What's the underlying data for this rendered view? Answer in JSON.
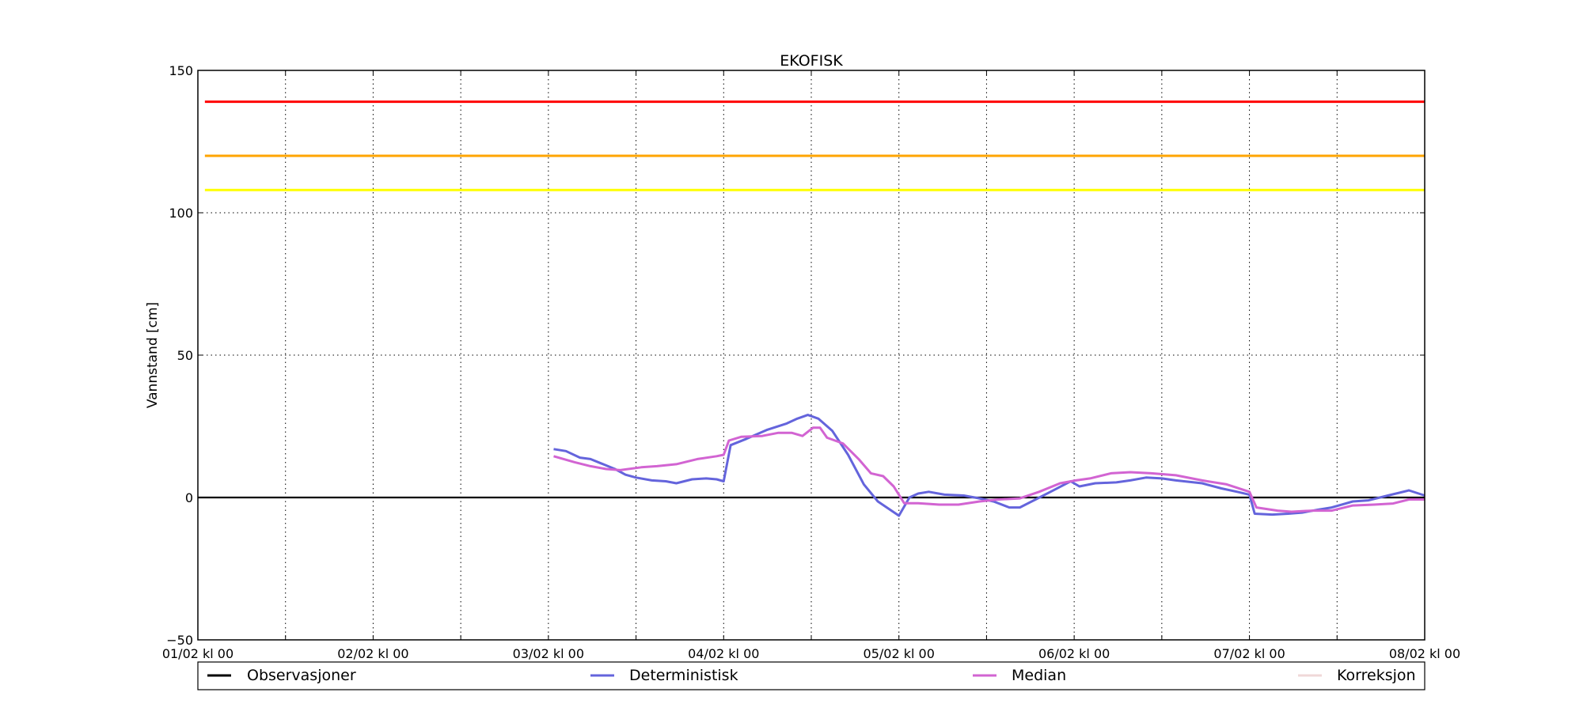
{
  "chart_data": {
    "type": "line",
    "title": "EKOFISK",
    "xlabel": "",
    "ylabel": "Vannstand [cm]",
    "xlim": [
      0,
      7
    ],
    "ylim": [
      -50,
      150
    ],
    "x_unit": "days since 01/02 kl 00",
    "grid": true,
    "xticks": [
      {
        "value": 0,
        "label": "01/02 kl 00"
      },
      {
        "value": 1,
        "label": "02/02 kl 00"
      },
      {
        "value": 2,
        "label": "03/02 kl 00"
      },
      {
        "value": 3,
        "label": "04/02 kl 00"
      },
      {
        "value": 4,
        "label": "05/02 kl 00"
      },
      {
        "value": 5,
        "label": "06/02 kl 00"
      },
      {
        "value": 6,
        "label": "07/02 kl 00"
      },
      {
        "value": 7,
        "label": "08/02 kl 00"
      }
    ],
    "yticks": [
      {
        "value": -50,
        "label": "−50"
      },
      {
        "value": 0,
        "label": "0"
      },
      {
        "value": 50,
        "label": "50"
      },
      {
        "value": 100,
        "label": "100"
      },
      {
        "value": 150,
        "label": "150"
      }
    ],
    "thresholds": [
      {
        "value": 139,
        "color": "#ff0000"
      },
      {
        "value": 120,
        "color": "#ffa500"
      },
      {
        "value": 108,
        "color": "#ffff00"
      }
    ],
    "series": [
      {
        "name": "Observasjoner",
        "color": "#000000",
        "x": [
          0,
          7
        ],
        "y": [
          0,
          0
        ]
      },
      {
        "name": "Deterministisk",
        "color": "#6464dc",
        "x": [
          2.03,
          2.1,
          2.18,
          2.24,
          2.3,
          2.38,
          2.44,
          2.5,
          2.59,
          2.67,
          2.73,
          2.82,
          2.9,
          2.96,
          3.0,
          3.04,
          3.13,
          3.25,
          3.36,
          3.42,
          3.48,
          3.54,
          3.62,
          3.71,
          3.8,
          3.88,
          4.0,
          4.06,
          4.11,
          4.17,
          4.26,
          4.37,
          4.46,
          4.54,
          4.63,
          4.69,
          4.78,
          4.89,
          4.98,
          5.03,
          5.12,
          5.24,
          5.32,
          5.41,
          5.5,
          5.58,
          5.73,
          5.84,
          5.93,
          6.0,
          6.03,
          6.13,
          6.22,
          6.3,
          6.39,
          6.47,
          6.59,
          6.68,
          6.79,
          6.91,
          7.0
        ],
        "y": [
          17,
          16.3,
          14,
          13.5,
          12,
          10,
          8,
          7,
          6,
          5.7,
          5,
          6.4,
          6.7,
          6.4,
          5.7,
          18.4,
          20.6,
          23.8,
          26,
          27.7,
          29,
          27.7,
          23.4,
          15,
          4.6,
          -1.4,
          -6.4,
          0,
          1.4,
          2,
          1,
          0.7,
          -0.3,
          -1.4,
          -3.5,
          -3.5,
          -0.7,
          2.8,
          5.7,
          3.9,
          5,
          5.3,
          6,
          7,
          6.7,
          6,
          5,
          3.2,
          2,
          1,
          -5.7,
          -6,
          -5.7,
          -5.3,
          -4.3,
          -3.5,
          -1.4,
          -1,
          0.7,
          2.5,
          0.7
        ]
      },
      {
        "name": "Median",
        "color": "#d264d2",
        "x": [
          2.03,
          2.15,
          2.24,
          2.33,
          2.41,
          2.53,
          2.62,
          2.73,
          2.85,
          2.96,
          3.0,
          3.03,
          3.1,
          3.22,
          3.31,
          3.39,
          3.45,
          3.51,
          3.55,
          3.59,
          3.68,
          3.77,
          3.84,
          3.91,
          3.97,
          4.03,
          4.11,
          4.23,
          4.34,
          4.46,
          4.57,
          4.69,
          4.8,
          4.92,
          5.01,
          5.09,
          5.21,
          5.32,
          5.44,
          5.58,
          5.73,
          5.87,
          6.0,
          6.04,
          6.16,
          6.24,
          6.36,
          6.47,
          6.59,
          6.71,
          6.82,
          6.91,
          7.0
        ],
        "y": [
          14.5,
          12.4,
          11,
          10,
          9.6,
          10.6,
          11,
          11.7,
          13.5,
          14.5,
          15,
          20,
          21.3,
          21.6,
          22.7,
          22.7,
          21.6,
          24.5,
          24.5,
          21,
          19,
          13.5,
          8.5,
          7.5,
          3.9,
          -2,
          -2,
          -2.5,
          -2.5,
          -1.4,
          -0.7,
          -0.3,
          2,
          5,
          6,
          6.7,
          8.5,
          8.9,
          8.5,
          7.8,
          6,
          4.6,
          2,
          -3.5,
          -4.6,
          -5,
          -4.6,
          -4.6,
          -2.8,
          -2.5,
          -2.1,
          -0.7,
          -0.7
        ]
      },
      {
        "name": "Korreksjon",
        "color": "#f0d8d8",
        "x": [],
        "y": []
      }
    ],
    "legend_placement": "bottom"
  }
}
